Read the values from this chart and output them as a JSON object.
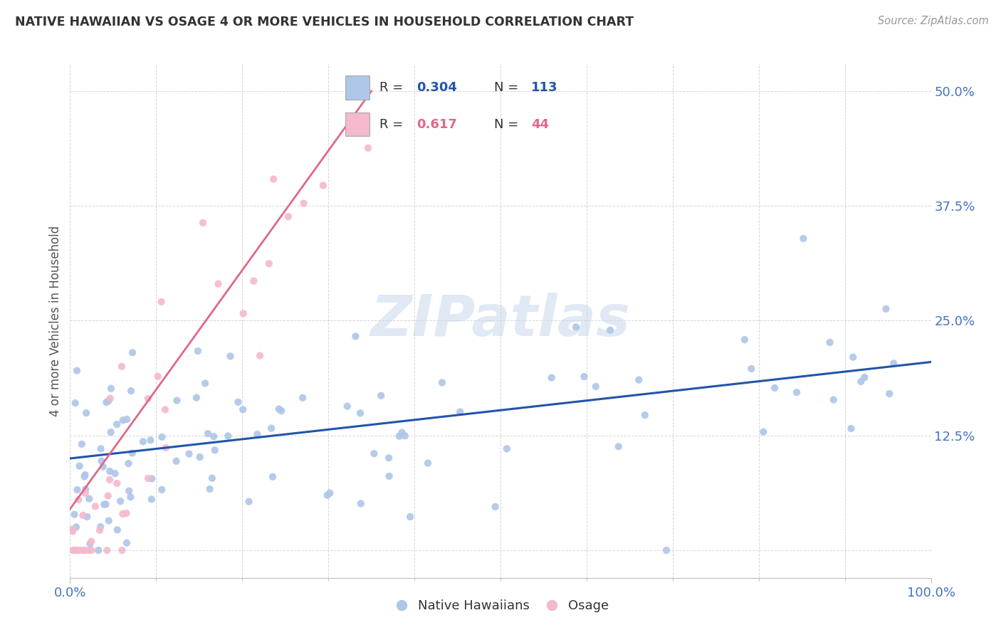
{
  "title": "NATIVE HAWAIIAN VS OSAGE 4 OR MORE VEHICLES IN HOUSEHOLD CORRELATION CHART",
  "source_text": "Source: ZipAtlas.com",
  "ylabel": "4 or more Vehicles in Household",
  "xlim": [
    0.0,
    100.0
  ],
  "ylim": [
    -3.0,
    53.0
  ],
  "yticks": [
    0.0,
    12.5,
    25.0,
    37.5,
    50.0
  ],
  "yticklabels": [
    "",
    "12.5%",
    "25.0%",
    "37.5%",
    "50.0%"
  ],
  "xtick_left": "0.0%",
  "xtick_right": "100.0%",
  "blue_color": "#aec6e8",
  "blue_line_color": "#2255aa",
  "pink_color": "#f5b8cc",
  "pink_line_color": "#e06888",
  "legend_val1": "0.304",
  "legend_count1": "113",
  "legend_val2": "0.617",
  "legend_count2": "44",
  "watermark": "ZIPatlas",
  "background_color": "#ffffff",
  "grid_color": "#cccccc",
  "tick_color": "#4472c4",
  "nh_intercept": 10.0,
  "nh_slope": 0.09,
  "os_intercept": 3.0,
  "os_slope": 1.35
}
